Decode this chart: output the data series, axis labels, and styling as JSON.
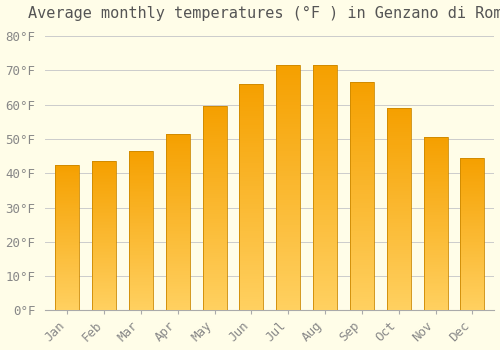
{
  "months": [
    "Jan",
    "Feb",
    "Mar",
    "Apr",
    "May",
    "Jun",
    "Jul",
    "Aug",
    "Sep",
    "Oct",
    "Nov",
    "Dec"
  ],
  "values": [
    42.5,
    43.5,
    46.5,
    51.5,
    59.5,
    66.0,
    71.5,
    71.5,
    66.5,
    59.0,
    50.5,
    44.5
  ],
  "color_bottom": "#FFD060",
  "color_top": "#F5A000",
  "bar_edge_color": "#CC8800",
  "title": "Average monthly temperatures (°F ) in Genzano di Roma",
  "ylabel_ticks": [
    "0°F",
    "10°F",
    "20°F",
    "30°F",
    "40°F",
    "50°F",
    "60°F",
    "70°F",
    "80°F"
  ],
  "ytick_values": [
    0,
    10,
    20,
    30,
    40,
    50,
    60,
    70,
    80
  ],
  "ylim": [
    0,
    83
  ],
  "background_color": "#FFFDE8",
  "grid_color": "#CCCCCC",
  "title_fontsize": 11,
  "tick_fontsize": 9,
  "bar_width": 0.65,
  "n_gradient_steps": 100
}
